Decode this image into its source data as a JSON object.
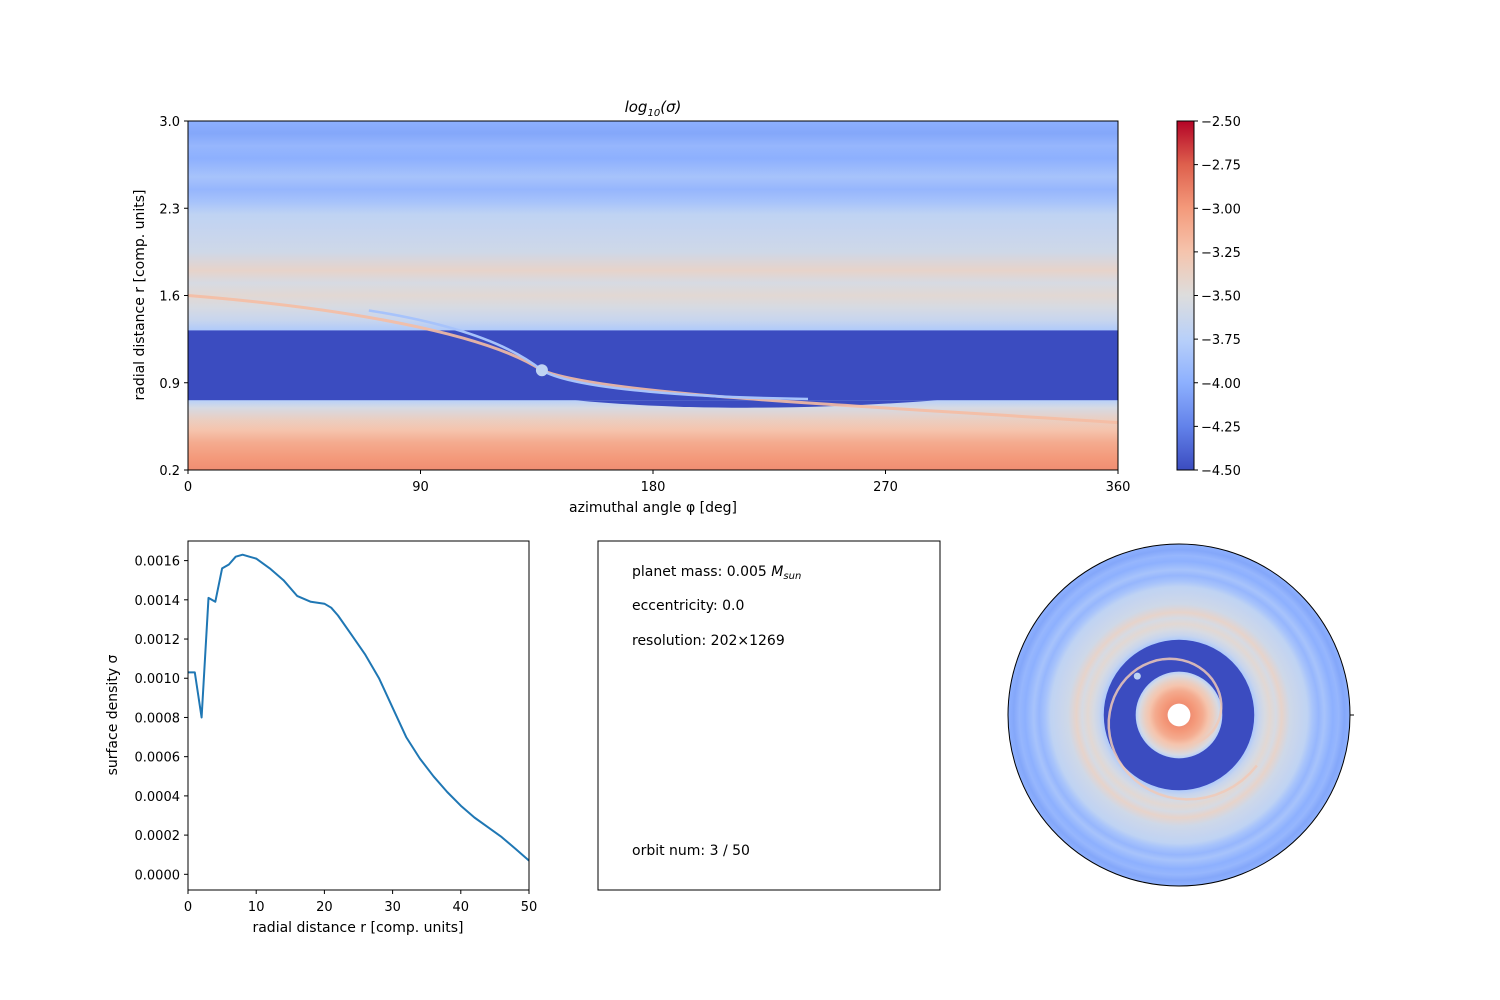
{
  "chart_data": [
    {
      "type": "heatmap",
      "title_base": "log",
      "title_sub": "10",
      "title_arg": "(σ)",
      "xlabel": "azimuthal angle φ [deg]",
      "ylabel": "radial distance r [comp. units]",
      "xlim": [
        0,
        360
      ],
      "ylim": [
        0.2,
        3.0
      ],
      "x_ticks": [
        "0",
        "90",
        "180",
        "270",
        "360"
      ],
      "y_ticks": [
        "0.2",
        "0.9",
        "1.6",
        "2.3",
        "3.0"
      ],
      "colormap": "coolwarm",
      "colorbar": {
        "range": [
          -4.5,
          -2.5
        ],
        "ticks": [
          "−4.50",
          "−4.25",
          "−4.00",
          "−3.75",
          "−3.50",
          "−3.25",
          "−3.00",
          "−2.75",
          "−2.50"
        ]
      },
      "features": {
        "gap_r": [
          0.76,
          1.32
        ],
        "gap_value": -4.5,
        "planet_r": 1.0,
        "planet_phi_deg": 137
      },
      "bands": [
        {
          "r": 0.2,
          "value": -2.95
        },
        {
          "r": 0.3,
          "value": -3.0
        },
        {
          "r": 0.42,
          "value": -3.1
        },
        {
          "r": 0.52,
          "value": -3.25
        },
        {
          "r": 0.6,
          "value": -3.35
        },
        {
          "r": 0.7,
          "value": -3.55
        },
        {
          "r": 0.76,
          "value": -3.75
        },
        {
          "r": 1.32,
          "value": -3.8
        },
        {
          "r": 1.4,
          "value": -3.65
        },
        {
          "r": 1.5,
          "value": -3.55
        },
        {
          "r": 1.6,
          "value": -3.45
        },
        {
          "r": 1.7,
          "value": -3.55
        },
        {
          "r": 1.8,
          "value": -3.4
        },
        {
          "r": 1.95,
          "value": -3.6
        },
        {
          "r": 2.1,
          "value": -3.65
        },
        {
          "r": 2.25,
          "value": -3.7
        },
        {
          "r": 2.35,
          "value": -3.85
        },
        {
          "r": 2.45,
          "value": -3.95
        },
        {
          "r": 2.55,
          "value": -3.85
        },
        {
          "r": 2.7,
          "value": -4.0
        },
        {
          "r": 2.8,
          "value": -3.95
        },
        {
          "r": 2.9,
          "value": -4.05
        },
        {
          "r": 3.0,
          "value": -4.0
        }
      ]
    },
    {
      "type": "line",
      "xlabel": "radial distance r [comp. units]",
      "ylabel": "surface density σ",
      "xlim": [
        0,
        50
      ],
      "ylim": [
        -8e-05,
        0.0017
      ],
      "x_ticks": [
        0,
        10,
        20,
        30,
        40,
        50
      ],
      "x_tick_labels": [
        "0",
        "10",
        "20",
        "30",
        "40",
        "50"
      ],
      "y_ticks": [
        0,
        0.0002,
        0.0004,
        0.0006,
        0.0008,
        0.001,
        0.0012,
        0.0014,
        0.0016
      ],
      "y_tick_labels": [
        "0.0000",
        "0.0002",
        "0.0004",
        "0.0006",
        "0.0008",
        "0.0010",
        "0.0012",
        "0.0014",
        "0.0016"
      ],
      "series": [
        {
          "color": "#1f77b4",
          "x": [
            0,
            1,
            2,
            3,
            4,
            5,
            6,
            7,
            8,
            9,
            10,
            12,
            14,
            16,
            18,
            20,
            21,
            22,
            24,
            26,
            28,
            30,
            32,
            34,
            36,
            38,
            40,
            42,
            44,
            46,
            48,
            50
          ],
          "y": [
            0.00103,
            0.00103,
            0.0008,
            0.00141,
            0.00139,
            0.00156,
            0.00158,
            0.00162,
            0.00163,
            0.00162,
            0.00161,
            0.00156,
            0.0015,
            0.00142,
            0.00139,
            0.00138,
            0.00136,
            0.00132,
            0.00122,
            0.00112,
            0.001,
            0.00085,
            0.0007,
            0.00059,
            0.0005,
            0.00042,
            0.00035,
            0.00029,
            0.00024,
            0.00019,
            0.00013,
            7e-05
          ]
        }
      ]
    },
    {
      "type": "heatmap",
      "projection": "polar",
      "r_range": [
        0.2,
        3.0
      ]
    }
  ],
  "info_panel": {
    "planet_mass_prefix": "planet mass: 0.005 ",
    "planet_mass_unit": "M",
    "planet_mass_unit_sub": "sun",
    "eccentricity": "eccentricity: 0.0",
    "resolution": "resolution: 202×1269",
    "orbit_num": "orbit num: 3 / 50"
  }
}
